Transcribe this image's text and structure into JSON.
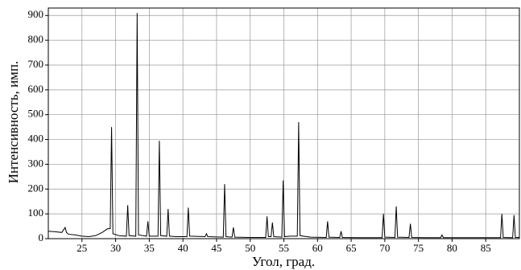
{
  "chart_data": {
    "type": "line",
    "xlabel": "Угол, град.",
    "ylabel": "Интенсивность, имп.",
    "color": "#000000",
    "grid": true,
    "xlim": [
      20,
      90
    ],
    "ylim": [
      0,
      930
    ],
    "xticks": [
      25,
      30,
      35,
      40,
      45,
      50,
      55,
      60,
      65,
      70,
      75,
      80,
      85
    ],
    "yticks": [
      0,
      100,
      200,
      300,
      400,
      500,
      600,
      700,
      800,
      900
    ],
    "x": [
      20,
      21,
      22,
      22.5,
      22.7,
      23,
      24,
      25,
      26,
      27,
      28,
      28.8,
      29.2,
      29.4,
      29.6,
      30.5,
      31.6,
      31.8,
      32.0,
      33.0,
      33.2,
      33.4,
      34.6,
      34.8,
      35.0,
      36.3,
      36.5,
      36.7,
      37.6,
      37.8,
      38.0,
      39,
      40.6,
      40.8,
      41.0,
      43.3,
      43.5,
      43.7,
      46.0,
      46.2,
      46.4,
      47.3,
      47.5,
      47.7,
      50,
      52.3,
      52.5,
      52.7,
      53.1,
      53.3,
      53.5,
      54.7,
      54.9,
      55.1,
      56,
      57.0,
      57.2,
      57.4,
      59,
      61.3,
      61.5,
      61.7,
      63.3,
      63.5,
      63.7,
      66,
      69.6,
      69.8,
      70.0,
      71.5,
      71.7,
      71.9,
      73.6,
      73.8,
      74.0,
      76,
      78.3,
      78.5,
      78.7,
      82,
      87.2,
      87.4,
      87.6,
      89.0,
      89.2,
      89.4,
      90
    ],
    "values": [
      30,
      28,
      25,
      45,
      25,
      18,
      15,
      10,
      8,
      12,
      25,
      40,
      40,
      450,
      20,
      12,
      10,
      135,
      12,
      10,
      910,
      15,
      10,
      70,
      10,
      10,
      395,
      12,
      10,
      120,
      10,
      8,
      8,
      125,
      10,
      8,
      20,
      8,
      6,
      220,
      8,
      6,
      45,
      6,
      5,
      5,
      90,
      8,
      8,
      65,
      8,
      6,
      235,
      8,
      10,
      10,
      470,
      12,
      6,
      5,
      70,
      6,
      5,
      30,
      5,
      4,
      4,
      100,
      6,
      5,
      130,
      6,
      5,
      60,
      5,
      4,
      4,
      15,
      4,
      4,
      4,
      100,
      5,
      4,
      95,
      5,
      5
    ]
  }
}
